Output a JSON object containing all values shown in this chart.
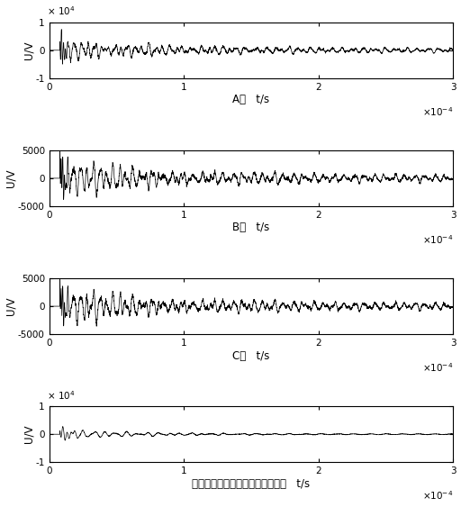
{
  "title_A": "A相   t/s",
  "title_B": "B相   t/s",
  "title_C": "C相   t/s",
  "title_D": "故障相注入脉冲后得到的零模行波   t/s",
  "ylabel": "U/V",
  "xlim": [
    0,
    0.0003
  ],
  "ylim_A": [
    -10000.0,
    10000.0
  ],
  "ylim_BC": [
    -5000,
    5000
  ],
  "ylim_D": [
    -10000.0,
    10000.0
  ],
  "xticks": [
    0,
    0.0001,
    0.0002,
    0.0003
  ],
  "xticklabels": [
    "0",
    "1",
    "2",
    "3"
  ],
  "yticks_A": [
    -10000.0,
    0,
    10000.0
  ],
  "yticklabels_A": [
    "-1",
    "0",
    "1"
  ],
  "yscale_label_A": "x 10^4",
  "yticks_BC": [
    -5000,
    0,
    5000
  ],
  "yticklabels_BC": [
    "-5000",
    "0",
    "5000"
  ],
  "yticks_D": [
    -10000.0,
    0,
    10000.0
  ],
  "yticklabels_D": [
    "-1",
    "0",
    "1"
  ],
  "yscale_label_D": "x 10^4",
  "xscale_label": "x 10^{-4}",
  "line_color": "#000000",
  "bg_color": "#ffffff"
}
